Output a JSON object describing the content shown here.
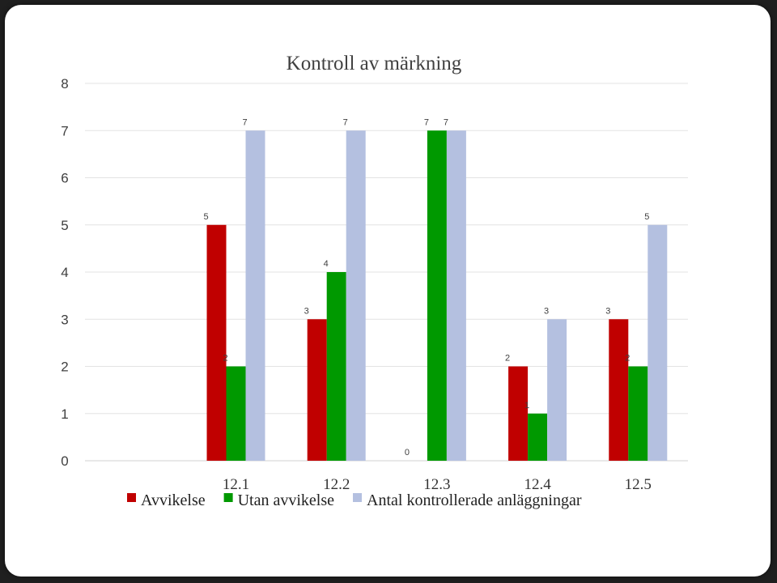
{
  "chart_data": {
    "type": "bar",
    "title": "Kontroll av märkning",
    "categories": [
      "12.1",
      "12.2",
      "12.3",
      "12.4",
      "12.5"
    ],
    "series": [
      {
        "name": "Avvikelse",
        "color": "#c00000",
        "values": [
          5,
          3,
          0,
          2,
          3
        ]
      },
      {
        "name": "Utan avvikelse",
        "color": "#009900",
        "values": [
          2,
          4,
          7,
          1,
          2
        ]
      },
      {
        "name": "Antal kontrollerade anläggningar",
        "color": "#b4c0e0",
        "values": [
          7,
          7,
          7,
          3,
          5
        ]
      }
    ],
    "yticks": [
      "0",
      "1",
      "2",
      "3",
      "4",
      "5",
      "6",
      "7",
      "8"
    ],
    "ylim": [
      0,
      8
    ],
    "grid": true,
    "legend_position": "bottom",
    "data_labels": true
  }
}
